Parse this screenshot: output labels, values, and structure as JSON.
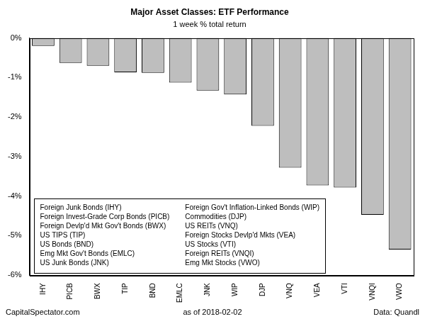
{
  "chart_data": {
    "type": "bar",
    "title": "Major Asset Classes: ETF Performance",
    "subtitle": "1 week % total return",
    "categories": [
      "IHY",
      "PICB",
      "BWX",
      "TIP",
      "BND",
      "EMLC",
      "JNK",
      "WIP",
      "DJP",
      "VNQ",
      "VEA",
      "VTI",
      "VNQI",
      "VWO"
    ],
    "values": [
      -0.2,
      -0.63,
      -0.7,
      -0.87,
      -0.88,
      -1.13,
      -1.33,
      -1.43,
      -2.22,
      -3.28,
      -3.73,
      -3.78,
      -4.47,
      -5.35
    ],
    "color": "#bebebe",
    "ylim": [
      -6,
      0
    ],
    "yticks": [
      {
        "value": -6,
        "label": "-6%"
      },
      {
        "value": -5,
        "label": "-5%"
      },
      {
        "value": -4,
        "label": "-4%"
      },
      {
        "value": -3,
        "label": "-3%"
      },
      {
        "value": -2,
        "label": "-2%"
      },
      {
        "value": -1,
        "label": "-1%"
      },
      {
        "value": 0,
        "label": "0%"
      }
    ],
    "grid": false,
    "annotations": [
      "Foreign Junk Bonds (IHY)",
      "Foreign Invest-Grade Corp Bonds (PICB)",
      "Foreign Devlp'd Mkt Gov't Bonds (BWX)",
      "US TIPS (TIP)",
      "US Bonds (BND)",
      "Emg Mkt Gov't Bonds (EMLC)",
      "US Junk Bonds (JNK)",
      "Foreign Gov't Inflation-Linked Bonds (WIP)",
      "Commodities (DJP)",
      "US REITs (VNQ)",
      "Foreign Stocks Devlp'd Mkts (VEA)",
      "US Stocks (VTI)",
      "Foreign REITs (VNQI)",
      "Emg Mkt Stocks (VWO)"
    ],
    "caption": [
      "CapitalSpectator.com",
      "as of 2018-02-02",
      "Data: Quandl"
    ]
  }
}
